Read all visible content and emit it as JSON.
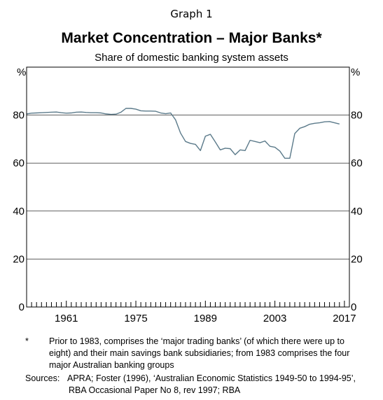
{
  "graph_label": "Graph 1",
  "chart_data": {
    "type": "line",
    "title": "Market Concentration – Major Banks*",
    "subtitle": "Share of domestic banking system assets",
    "ylabel_left": "%",
    "ylabel_right": "%",
    "xlabel": "",
    "ylim": [
      0,
      100
    ],
    "yticks": [
      0,
      20,
      40,
      60,
      80
    ],
    "xlim": [
      1953,
      2018
    ],
    "xticks": [
      1961,
      1975,
      1989,
      2003,
      2017
    ],
    "grid": true,
    "legend": "none",
    "line_color": "#5b7a8a",
    "x": [
      1953,
      1954,
      1955,
      1956,
      1957,
      1958,
      1959,
      1960,
      1961,
      1962,
      1963,
      1964,
      1965,
      1966,
      1967,
      1968,
      1969,
      1970,
      1971,
      1972,
      1973,
      1974,
      1975,
      1976,
      1977,
      1978,
      1979,
      1980,
      1981,
      1982,
      1983,
      1984,
      1985,
      1986,
      1987,
      1988,
      1989,
      1990,
      1991,
      1992,
      1993,
      1994,
      1995,
      1996,
      1997,
      1998,
      1999,
      2000,
      2001,
      2002,
      2003,
      2004,
      2005,
      2006,
      2007,
      2008,
      2009,
      2010,
      2011,
      2012,
      2013,
      2014,
      2015,
      2016,
      2017
    ],
    "series": [
      {
        "values": [
          80.5,
          80.8,
          80.9,
          81.0,
          81.1,
          81.2,
          81.3,
          81.0,
          80.8,
          80.9,
          81.2,
          81.3,
          81.1,
          81.0,
          81.0,
          80.9,
          80.5,
          80.3,
          80.4,
          81.2,
          82.8,
          82.8,
          82.5,
          81.8,
          81.7,
          81.7,
          81.6,
          80.9,
          80.6,
          80.9,
          78.0,
          72.5,
          69.0,
          68.2,
          67.8,
          65.2,
          71.2,
          72.0,
          68.8,
          65.5,
          66.2,
          66.0,
          63.5,
          65.5,
          65.2,
          69.5,
          69.0,
          68.5,
          69.2,
          67.0,
          66.6,
          65.0,
          62.0,
          62.0,
          72.3,
          74.5,
          75.2,
          76.2,
          76.6,
          76.8,
          77.2,
          77.3,
          76.8,
          76.3,
          null
        ]
      }
    ]
  },
  "notes": {
    "footnote_marker": "*",
    "footnote_text": "Prior to 1983, comprises the ‘major trading banks’ (of which there were up to eight) and their main savings bank subsidiaries; from 1983 comprises the four major Australian banking groups",
    "sources_label": "Sources:",
    "sources_text": "APRA; Foster (1996), ‘Australian Economic Statistics 1949-50 to 1994-95’, RBA Occasional Paper No 8, rev 1997; RBA"
  }
}
